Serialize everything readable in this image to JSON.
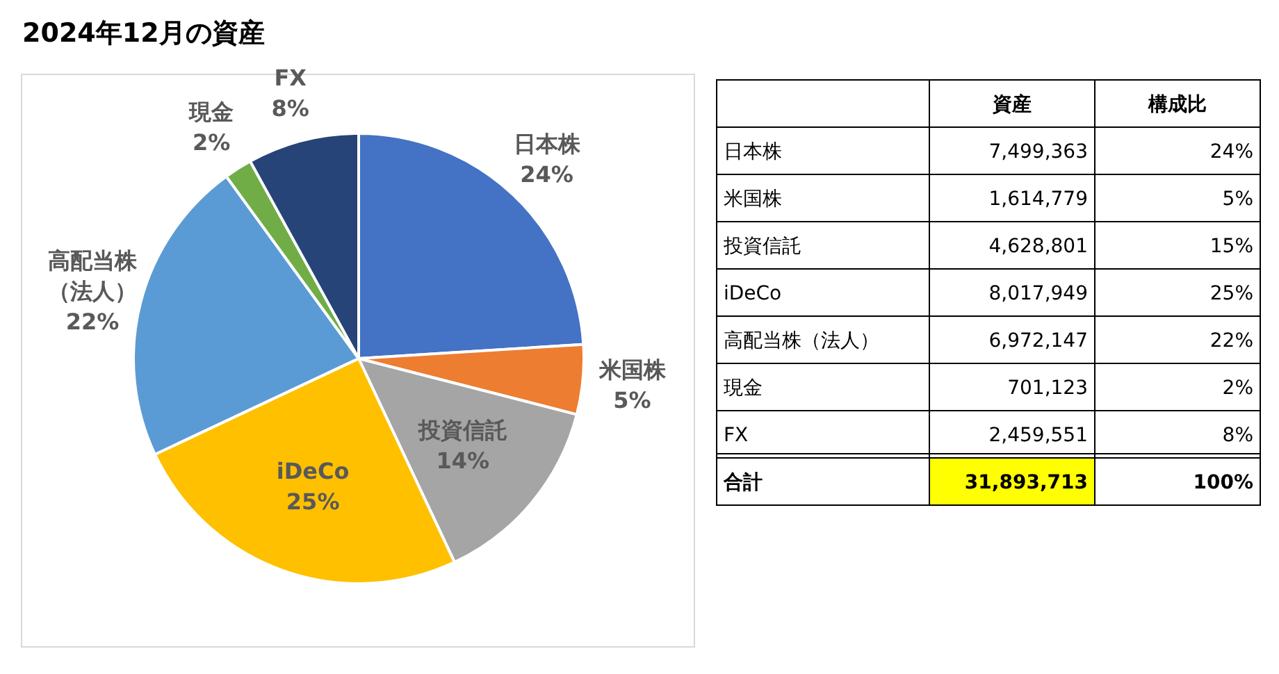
{
  "chart_data": [
    {
      "type": "pie",
      "title": "2024年12月の資産",
      "categories": [
        "日本株",
        "米国株",
        "投資信託",
        "iDeCo",
        "高配当株（法人）",
        "現金",
        "FX"
      ],
      "values": [
        24,
        5,
        14,
        25,
        22,
        2,
        8
      ],
      "colors": [
        "#4472c4",
        "#ed7d31",
        "#a5a5a5",
        "#ffc000",
        "#5b9bd5",
        "#70ad47",
        "#264478"
      ],
      "value_labels": [
        "24%",
        "5%",
        "14%",
        "25%",
        "22%",
        "2%",
        "8%"
      ]
    },
    {
      "type": "other",
      "categories": [
        "日本株",
        "米国株",
        "投資信託",
        "iDeCo",
        "高配当株（法人）",
        "現金",
        "FX",
        "合計"
      ],
      "series": [
        {
          "name": "資産",
          "values": [
            7499363,
            1614779,
            4628801,
            8017949,
            6972147,
            701123,
            2459551,
            31893713
          ],
          "value_labels": [
            "7,499,363",
            "1,614,779",
            "4,628,801",
            "8,017,949",
            "6,972,147",
            "701,123",
            "2,459,551",
            "31,893,713"
          ]
        },
        {
          "name": "構成比",
          "values": [
            24,
            5,
            15,
            25,
            22,
            2,
            8,
            100
          ],
          "value_labels": [
            "24%",
            "5%",
            "15%",
            "25%",
            "22%",
            "2%",
            "8%",
            "100%"
          ]
        }
      ]
    }
  ]
}
